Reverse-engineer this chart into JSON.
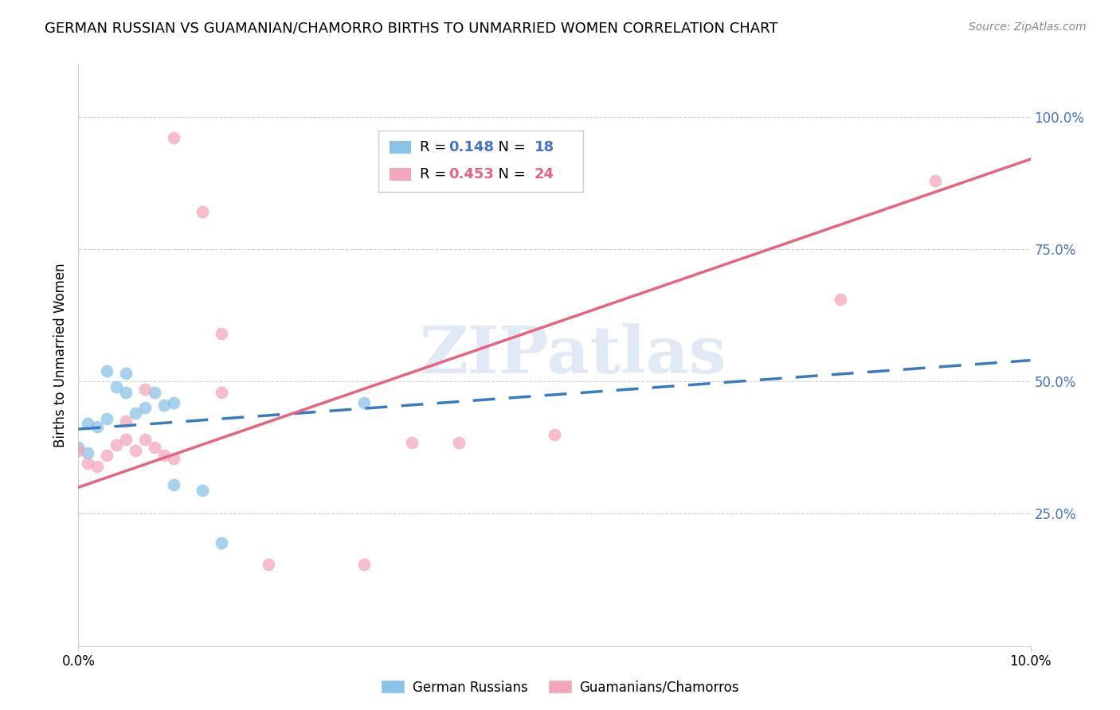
{
  "title": "GERMAN RUSSIAN VS GUAMANIAN/CHAMORRO BIRTHS TO UNMARRIED WOMEN CORRELATION CHART",
  "source": "Source: ZipAtlas.com",
  "ylabel": "Births to Unmarried Women",
  "yticks": [
    "100.0%",
    "75.0%",
    "50.0%",
    "25.0%"
  ],
  "ytick_vals": [
    1.0,
    0.75,
    0.5,
    0.25
  ],
  "xmin": 0.0,
  "xmax": 0.1,
  "ymin": 0.0,
  "ymax": 1.1,
  "legend_blue_r": "0.148",
  "legend_blue_n": "18",
  "legend_pink_r": "0.453",
  "legend_pink_n": "24",
  "legend_label_blue": "German Russians",
  "legend_label_pink": "Guamanians/Chamorros",
  "blue_color": "#89c4e8",
  "pink_color": "#f4a7bb",
  "blue_line_color": "#3a7bbf",
  "pink_line_color": "#e8637e",
  "blue_r_color": "#4472c4",
  "pink_r_color": "#e8637e",
  "ytick_color": "#4472c4",
  "watermark": "ZIPatlas",
  "background_color": "#ffffff",
  "grid_color": "#d0d0d0",
  "blue_scatter_x": [
    0.0,
    0.001,
    0.001,
    0.002,
    0.003,
    0.003,
    0.004,
    0.005,
    0.005,
    0.006,
    0.007,
    0.008,
    0.009,
    0.01,
    0.01,
    0.013,
    0.015,
    0.03
  ],
  "blue_scatter_y": [
    0.375,
    0.365,
    0.42,
    0.415,
    0.43,
    0.52,
    0.49,
    0.48,
    0.515,
    0.44,
    0.45,
    0.48,
    0.455,
    0.46,
    0.305,
    0.295,
    0.195,
    0.46
  ],
  "pink_scatter_x": [
    0.0,
    0.001,
    0.002,
    0.003,
    0.004,
    0.005,
    0.005,
    0.006,
    0.007,
    0.007,
    0.008,
    0.009,
    0.01,
    0.01,
    0.013,
    0.015,
    0.015,
    0.02,
    0.03,
    0.035,
    0.04,
    0.05,
    0.08,
    0.09
  ],
  "pink_scatter_y": [
    0.37,
    0.345,
    0.34,
    0.36,
    0.38,
    0.39,
    0.425,
    0.37,
    0.39,
    0.485,
    0.375,
    0.36,
    0.355,
    0.96,
    0.82,
    0.59,
    0.48,
    0.155,
    0.155,
    0.385,
    0.385,
    0.4,
    0.655,
    0.88
  ],
  "blue_line_x0": 0.0,
  "blue_line_x1": 0.1,
  "blue_line_y0": 0.41,
  "blue_line_y1": 0.54,
  "pink_line_x0": 0.0,
  "pink_line_x1": 0.1,
  "pink_line_y0": 0.3,
  "pink_line_y1": 0.92
}
